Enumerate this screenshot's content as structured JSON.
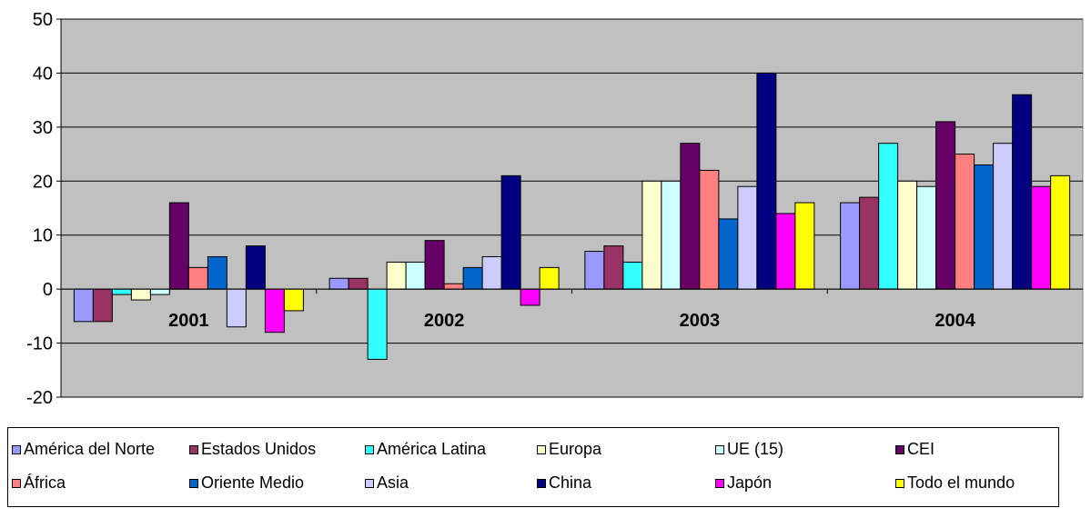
{
  "chart_data": {
    "type": "bar",
    "title": "",
    "xlabel": "",
    "ylabel": "",
    "ylim": [
      -20,
      50
    ],
    "yticks": [
      "50",
      "40",
      "30",
      "20",
      "10",
      "0",
      "-10",
      "-20"
    ],
    "categories": [
      "2001",
      "2002",
      "2003",
      "2004"
    ],
    "grid": true,
    "plot_background": "#c0c0c0",
    "legend_position": "bottom",
    "series": [
      {
        "name": "América del Norte",
        "color": "#9999ff",
        "values": [
          -6,
          2,
          7,
          16
        ]
      },
      {
        "name": "Estados Unidos",
        "color": "#993366",
        "values": [
          -6,
          2,
          8,
          17
        ]
      },
      {
        "name": "América Latina",
        "color": "#33ffff",
        "values": [
          -1,
          -13,
          5,
          27
        ]
      },
      {
        "name": "Europa",
        "color": "#ffffcc",
        "values": [
          -2,
          5,
          20,
          20
        ]
      },
      {
        "name": "UE (15)",
        "color": "#ccffff",
        "values": [
          -1,
          5,
          20,
          19
        ]
      },
      {
        "name": "CEI",
        "color": "#660066",
        "values": [
          16,
          9,
          27,
          31
        ]
      },
      {
        "name": "África",
        "color": "#ff8080",
        "values": [
          4,
          1,
          22,
          25
        ]
      },
      {
        "name": "Oriente Medio",
        "color": "#0066cc",
        "values": [
          6,
          4,
          13,
          23
        ]
      },
      {
        "name": "Asia",
        "color": "#ccccff",
        "values": [
          -7,
          6,
          19,
          27
        ]
      },
      {
        "name": "China",
        "color": "#000080",
        "values": [
          8,
          21,
          40,
          36
        ]
      },
      {
        "name": "Japón",
        "color": "#ff00ff",
        "values": [
          -8,
          -3,
          14,
          19
        ]
      },
      {
        "name": "Todo el mundo",
        "color": "#ffff00",
        "values": [
          -4,
          4,
          16,
          21
        ]
      }
    ]
  }
}
